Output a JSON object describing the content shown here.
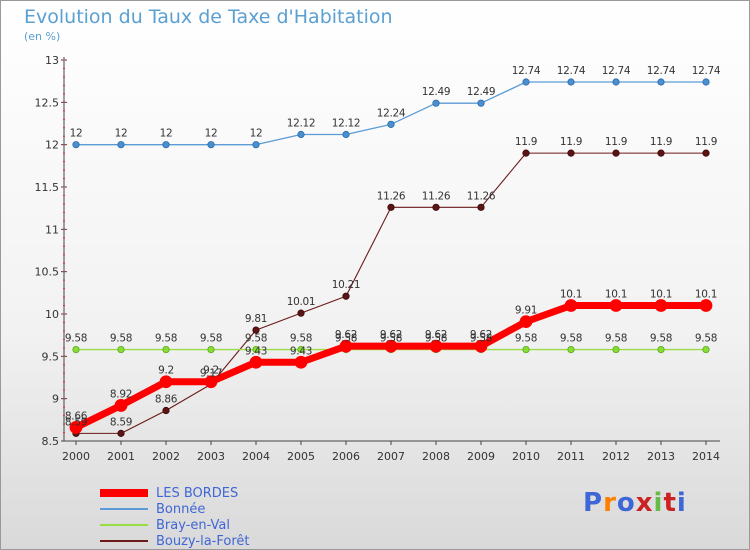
{
  "chart_data": {
    "type": "line",
    "title": "Evolution du Taux de Taxe d'Habitation",
    "subtitle": "(en %)",
    "categories": [
      "2000",
      "2001",
      "2002",
      "2003",
      "2004",
      "2005",
      "2006",
      "2007",
      "2008",
      "2009",
      "2010",
      "2011",
      "2012",
      "2013",
      "2014"
    ],
    "ylim": [
      8.5,
      13
    ],
    "yticks": [
      "8.5",
      "9",
      "9.5",
      "10",
      "10.5",
      "11",
      "11.5",
      "12",
      "12.5",
      "13"
    ],
    "grid": false,
    "legend_position": "bottom-left",
    "series": [
      {
        "name": "LES BORDES",
        "color": "#ff0000",
        "values": [
          8.66,
          8.92,
          9.2,
          9.2,
          9.43,
          9.43,
          9.62,
          9.62,
          9.62,
          9.62,
          9.91,
          10.1,
          10.1,
          10.1,
          10.1
        ]
      },
      {
        "name": "Bonnée",
        "color": "#5b9bd5",
        "values": [
          12,
          12,
          12,
          12,
          12,
          12.12,
          12.12,
          12.24,
          12.49,
          12.49,
          12.74,
          12.74,
          12.74,
          12.74,
          12.74
        ]
      },
      {
        "name": "Bray-en-Val",
        "color": "#99dd44",
        "values": [
          9.58,
          9.58,
          9.58,
          9.58,
          9.58,
          9.58,
          9.58,
          9.58,
          9.58,
          9.58,
          9.58,
          9.58,
          9.58,
          9.58,
          9.58
        ]
      },
      {
        "name": "Bouzy-la-Forêt",
        "color": "#6b1a1a",
        "values": [
          8.59,
          8.59,
          8.86,
          9.17,
          9.81,
          10.01,
          10.21,
          11.26,
          11.26,
          11.26,
          11.9,
          11.9,
          11.9,
          11.9,
          11.9
        ]
      }
    ]
  },
  "logo": {
    "text": "Proxiti",
    "colors": [
      "#3f66d6",
      "#ff7f00",
      "#3f66d6",
      "#cc2222",
      "#66bb44",
      "#cc2222",
      "#3f66d6"
    ]
  }
}
